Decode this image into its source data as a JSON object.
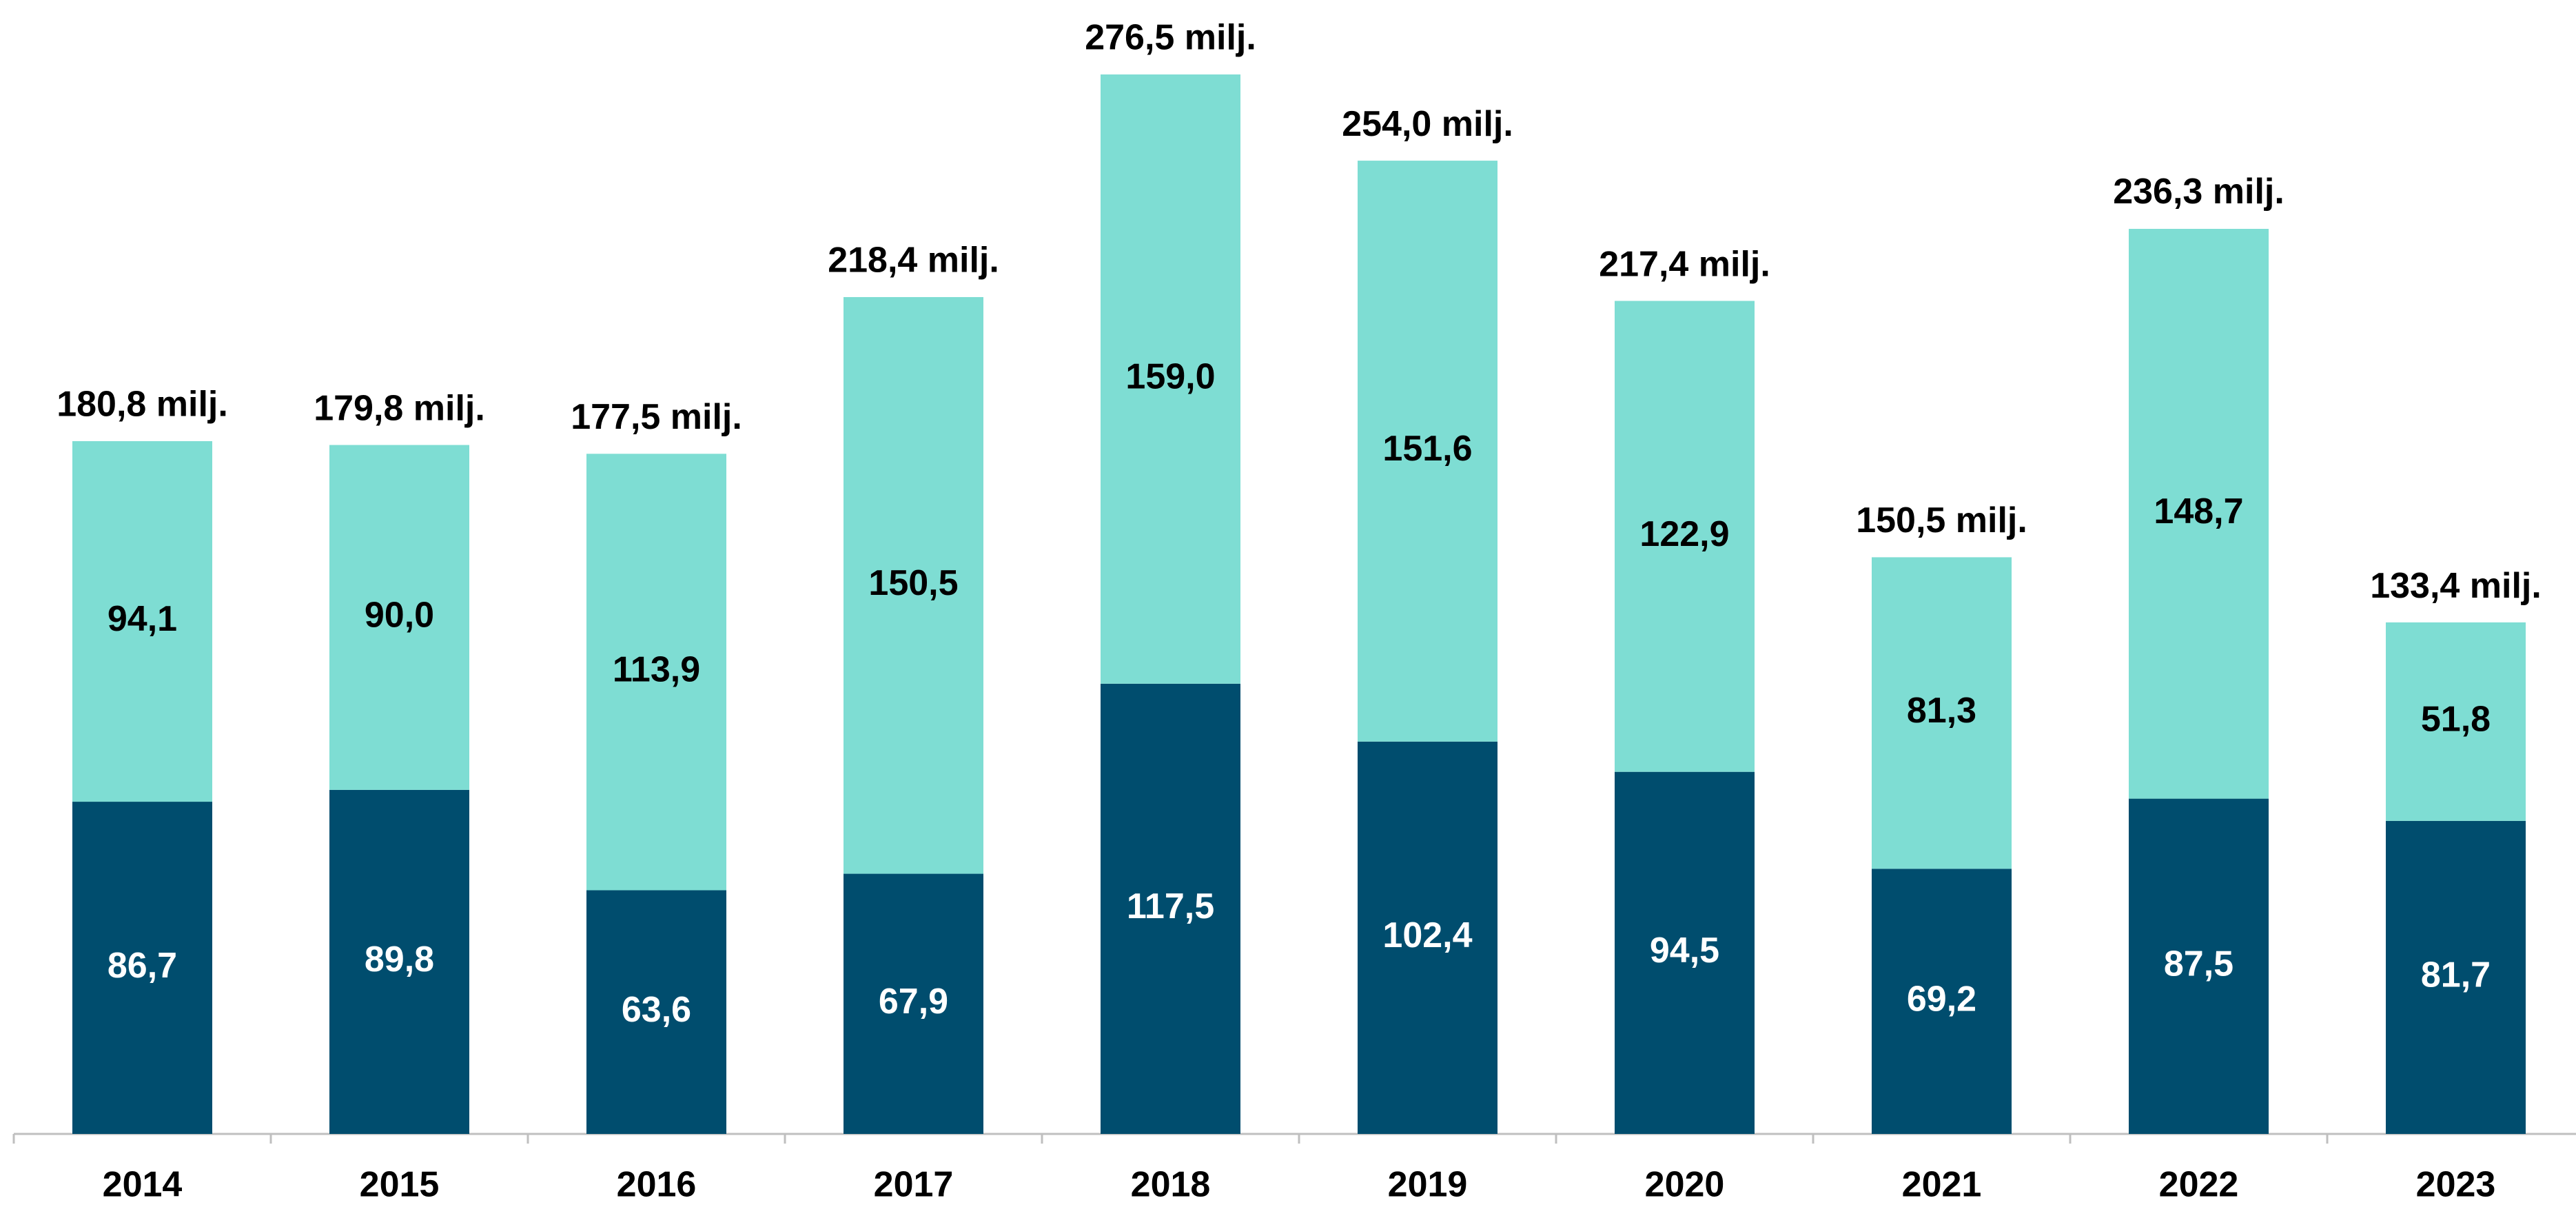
{
  "chart_data": {
    "type": "stacked_bar",
    "categories": [
      "2014",
      "2015",
      "2016",
      "2017",
      "2018",
      "2019",
      "2020",
      "2021",
      "2022",
      "2023"
    ],
    "series": [
      {
        "color": "#004d6e",
        "values": [
          86.7,
          89.8,
          63.6,
          67.9,
          117.5,
          102.4,
          94.5,
          69.2,
          87.5,
          81.7
        ],
        "value_labels": [
          "86,7",
          "89,8",
          "63,6",
          "67,9",
          "117,5",
          "102,4",
          "94,5",
          "69,2",
          "87,5",
          "81,7"
        ]
      },
      {
        "color": "#7eddd3",
        "values": [
          94.1,
          90.0,
          113.9,
          150.5,
          159.0,
          151.6,
          122.9,
          81.3,
          148.7,
          51.8
        ],
        "value_labels": [
          "94,1",
          "90,0",
          "113,9",
          "150,5",
          "159,0",
          "151,6",
          "122,9",
          "81,3",
          "148,7",
          "51,8"
        ]
      }
    ],
    "totals": [
      180.8,
      179.8,
      177.5,
      218.4,
      276.5,
      254.0,
      217.4,
      150.5,
      236.3,
      133.4
    ],
    "total_labels": [
      "180,8 milj.",
      "179,8 milj.",
      "177,5 milj.",
      "218,4 milj.",
      "276,5 milj.",
      "254,0 milj.",
      "217,4 milj.",
      "150,5 milj.",
      "236,3 milj.",
      "133,4 milj."
    ]
  }
}
